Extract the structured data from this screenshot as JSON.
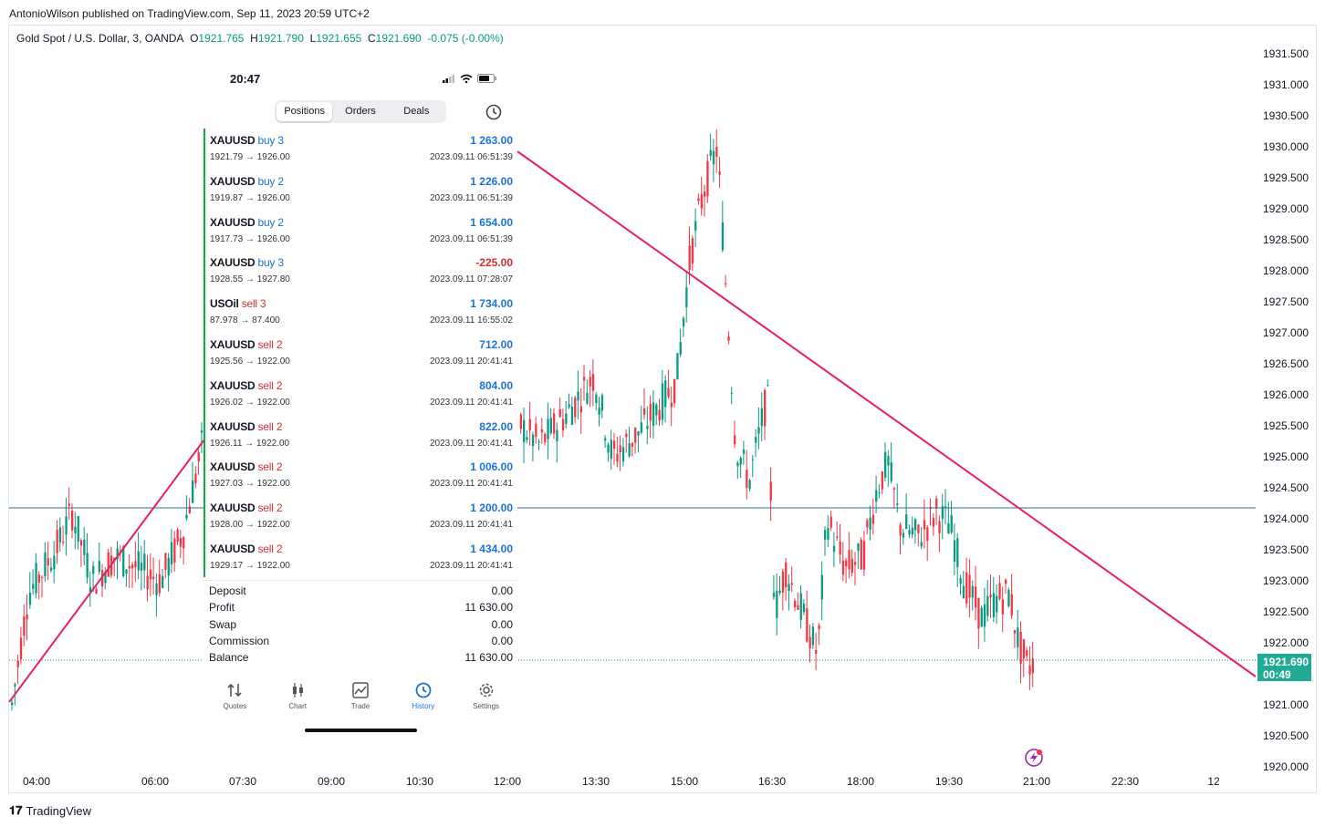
{
  "publication": {
    "text": "AntonioWilson published on TradingView.com, Sep 11, 2023 20:59 UTC+2"
  },
  "symbol": {
    "name": "Gold Spot / U.S. Dollar, 3, OANDA",
    "o_label": "O",
    "o": "1921.765",
    "h_label": "H",
    "h": "1921.790",
    "l_label": "L",
    "l": "1921.655",
    "c_label": "C",
    "c": "1921.690",
    "change": "-0.075 (-0.00%)"
  },
  "price_axis": [
    "1931.500",
    "1931.000",
    "1930.500",
    "1930.000",
    "1929.500",
    "1929.000",
    "1928.500",
    "1928.000",
    "1927.500",
    "1927.000",
    "1926.500",
    "1926.000",
    "1925.500",
    "1925.000",
    "1924.500",
    "1924.000",
    "1923.500",
    "1923.000",
    "1922.500",
    "1922.000",
    "1921.000",
    "1920.500",
    "1920.000"
  ],
  "time_axis": [
    "04:00",
    "06:00",
    "07:30",
    "09:00",
    "10:30",
    "12:00",
    "13:30",
    "15:00",
    "16:30",
    "18:00",
    "19:30",
    "21:00",
    "22:30",
    "12"
  ],
  "last_price": {
    "price": "1921.690",
    "countdown": "00:49"
  },
  "footer": {
    "brand": "TradingView"
  },
  "colors": {
    "up": "#089981",
    "down": "#f23645",
    "trendline": "#e91e63",
    "hline": "#2a6f97",
    "price_tag": "#22ab94"
  },
  "phone": {
    "time": "20:47",
    "tabs_top": [
      "Positions",
      "Orders",
      "Deals"
    ],
    "positions": [
      {
        "symbol": "XAUUSD",
        "dir": "buy 3",
        "side": "buy",
        "prices": "1921.79 → 1926.00",
        "profit": "1 263.00",
        "time": "2023.09.11 06:51:39"
      },
      {
        "symbol": "XAUUSD",
        "dir": "buy 2",
        "side": "buy",
        "prices": "1919.87 → 1926.00",
        "profit": "1 226.00",
        "time": "2023.09.11 06:51:39"
      },
      {
        "symbol": "XAUUSD",
        "dir": "buy 2",
        "side": "buy",
        "prices": "1917.73 → 1926.00",
        "profit": "1 654.00",
        "time": "2023.09.11 06:51:39"
      },
      {
        "symbol": "XAUUSD",
        "dir": "buy 3",
        "side": "buy",
        "prices": "1928.55 → 1927.80",
        "profit": "-225.00",
        "time": "2023.09.11 07:28:07"
      },
      {
        "symbol": "USOil",
        "dir": "sell 3",
        "side": "sell",
        "prices": "87.978 → 87.400",
        "profit": "1 734.00",
        "time": "2023.09.11 16:55:02"
      },
      {
        "symbol": "XAUUSD",
        "dir": "sell 2",
        "side": "sell",
        "prices": "1925.56 → 1922.00",
        "profit": "712.00",
        "time": "2023.09.11 20:41:41"
      },
      {
        "symbol": "XAUUSD",
        "dir": "sell 2",
        "side": "sell",
        "prices": "1926.02 → 1922.00",
        "profit": "804.00",
        "time": "2023.09.11 20:41:41"
      },
      {
        "symbol": "XAUUSD",
        "dir": "sell 2",
        "side": "sell",
        "prices": "1926.11 → 1922.00",
        "profit": "822.00",
        "time": "2023.09.11 20:41:41"
      },
      {
        "symbol": "XAUUSD",
        "dir": "sell 2",
        "side": "sell",
        "prices": "1927.03 → 1922.00",
        "profit": "1 006.00",
        "time": "2023.09.11 20:41:41"
      },
      {
        "symbol": "XAUUSD",
        "dir": "sell 2",
        "side": "sell",
        "prices": "1928.00 → 1922.00",
        "profit": "1 200.00",
        "time": "2023.09.11 20:41:41"
      },
      {
        "symbol": "XAUUSD",
        "dir": "sell 2",
        "side": "sell",
        "prices": "1929.17 → 1922.00",
        "profit": "1 434.00",
        "time": "2023.09.11 20:41:41"
      }
    ],
    "summary": [
      {
        "label": "Deposit",
        "value": "0.00"
      },
      {
        "label": "Profit",
        "value": "11 630.00"
      },
      {
        "label": "Swap",
        "value": "0.00"
      },
      {
        "label": "Commission",
        "value": "0.00"
      },
      {
        "label": "Balance",
        "value": "11 630.00"
      }
    ],
    "bottom_tabs": [
      "Quotes",
      "Chart",
      "Trade",
      "History",
      "Settings"
    ]
  }
}
